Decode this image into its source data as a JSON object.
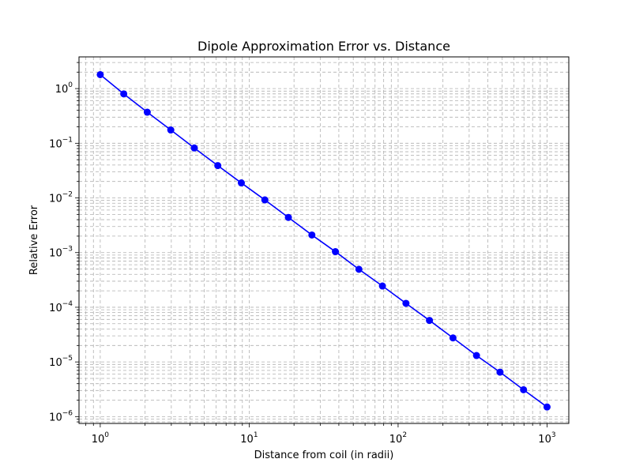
{
  "chart_data": {
    "type": "line",
    "title": "Dipole Approximation Error vs. Distance",
    "xlabel": "Distance from coil (in radii)",
    "ylabel": "Relative Error",
    "xscale": "log",
    "yscale": "log",
    "xlim": [
      0.72,
      1400
    ],
    "ylim": [
      7.5e-07,
      3.8
    ],
    "grid": "major and minor, dashed",
    "x_ticks": [
      {
        "base": "10",
        "exp": "0",
        "value": 1
      },
      {
        "base": "10",
        "exp": "1",
        "value": 10
      },
      {
        "base": "10",
        "exp": "2",
        "value": 100
      },
      {
        "base": "10",
        "exp": "3",
        "value": 1000
      }
    ],
    "y_ticks": [
      {
        "base": "10",
        "exp": "0",
        "value": 1
      },
      {
        "base": "10",
        "exp": "−1",
        "value": 0.1
      },
      {
        "base": "10",
        "exp": "−2",
        "value": 0.01
      },
      {
        "base": "10",
        "exp": "−3",
        "value": 0.001
      },
      {
        "base": "10",
        "exp": "−4",
        "value": 0.0001
      },
      {
        "base": "10",
        "exp": "−5",
        "value": 1e-05
      },
      {
        "base": "10",
        "exp": "−6",
        "value": 1e-06
      }
    ],
    "series": [
      {
        "color": "#0000ff",
        "marker": "circle",
        "x": [
          1,
          1.438,
          2.069,
          2.976,
          4.281,
          6.158,
          8.859,
          12.74,
          18.33,
          26.37,
          37.93,
          54.56,
          78.48,
          112.9,
          162.4,
          233.6,
          336.0,
          483.3,
          695.2,
          1000
        ],
        "y": [
          1.8,
          0.8,
          0.37,
          0.175,
          0.082,
          0.039,
          0.0188,
          0.0092,
          0.0044,
          0.0021,
          0.00104,
          0.000495,
          0.000245,
          0.000118,
          5.75e-05,
          2.75e-05,
          1.31e-05,
          6.5e-06,
          3.1e-06,
          1.5e-06
        ]
      }
    ]
  }
}
